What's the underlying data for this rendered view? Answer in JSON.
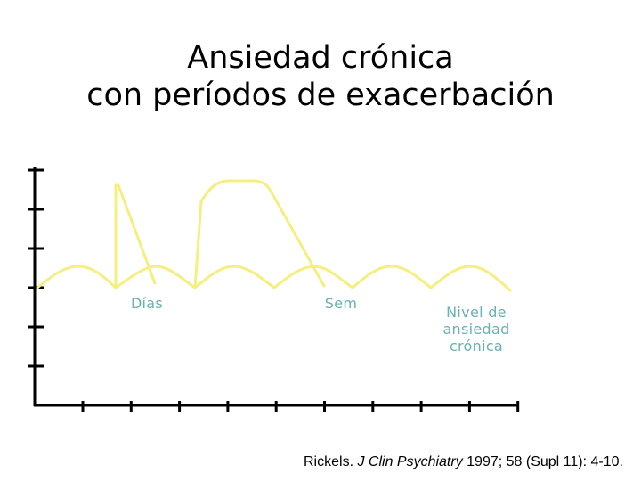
{
  "chart_data": {
    "type": "line",
    "title_lines": [
      "Ansiedad crónica",
      "con períodos de exacerbación"
    ],
    "xlabel": "",
    "ylabel": "",
    "axis_ticks": {
      "y_count": 6,
      "x_count": 10
    },
    "series": [
      {
        "name": "Nivel de ansiedad crónica",
        "shape": "baseline-wave",
        "color": "#f5ef80"
      },
      {
        "name": "Días",
        "shape": "spike-exacerbation",
        "color": "#f5ef80"
      },
      {
        "name": "Sem",
        "shape": "plateau-exacerbation",
        "color": "#f5ef80"
      }
    ],
    "annotations": [
      {
        "id": "dias",
        "text": "Días"
      },
      {
        "id": "sem",
        "text": "Sem"
      },
      {
        "id": "nivel",
        "lines": [
          "Nivel de",
          "ansiedad",
          "crónica"
        ]
      }
    ]
  },
  "colors": {
    "curve": "#f5ef80",
    "annotation_text": "#66b3b0",
    "axis": "#000000",
    "title": "#000000"
  },
  "citation": {
    "author": "Rickels. ",
    "journal": "J Clin Psychiatry",
    "details": " 1997; 58 (Supl 11): 4-10."
  }
}
